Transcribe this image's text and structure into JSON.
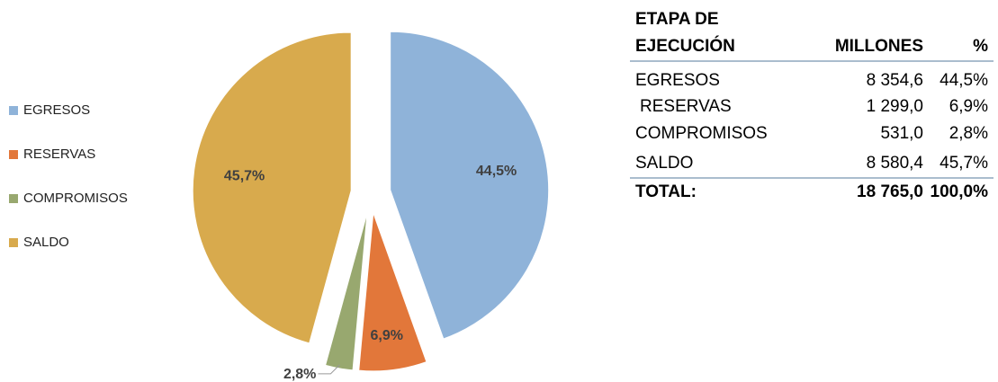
{
  "chart_data": {
    "type": "pie",
    "categories": [
      "EGRESOS",
      "RESERVAS",
      "COMPROMISOS",
      "SALDO"
    ],
    "values": [
      44.5,
      6.9,
      2.8,
      45.7
    ],
    "value_labels": [
      "44,5%",
      "6,9%",
      "2,8%",
      "45,7%"
    ],
    "colors": [
      "#8fb3d9",
      "#e2773a",
      "#98a86f",
      "#d8aa4d"
    ],
    "legend": "left"
  },
  "table": {
    "columns": [
      [
        "ETAPA DE",
        "EJECUCIÓN"
      ],
      [
        "MILLONES"
      ],
      [
        "%"
      ]
    ],
    "rows": [
      [
        "EGRESOS",
        "8 354,6",
        "44,5%"
      ],
      [
        "RESERVAS",
        "1 299,0",
        "6,9%"
      ],
      [
        "COMPROMISOS",
        "531,0",
        "2,8%"
      ],
      [
        "SALDO",
        "8 580,4",
        "45,7%"
      ]
    ],
    "total": [
      "TOTAL:",
      "18 765,0",
      "100,0%"
    ]
  }
}
